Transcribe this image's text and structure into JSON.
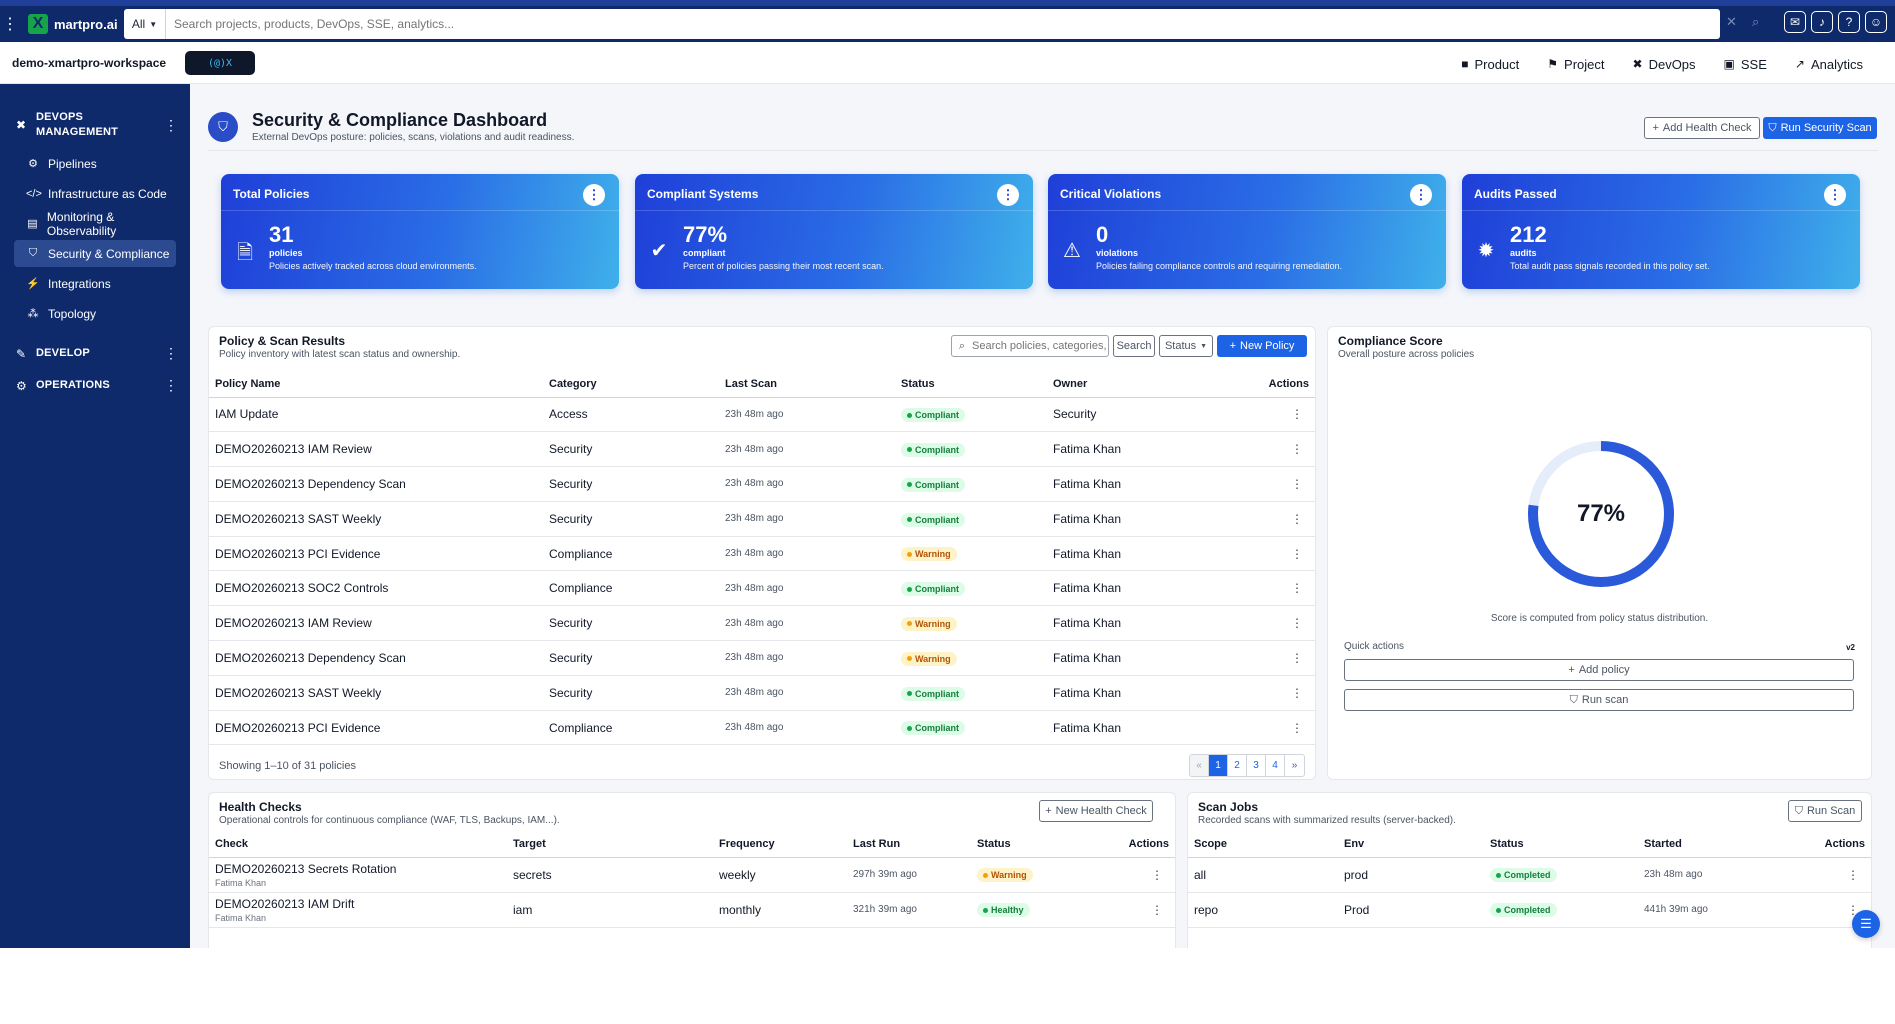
{
  "topbar": {
    "brand": "martpro.ai",
    "search_scope": "All",
    "search_placeholder": "Search projects, products, DevOps, SSE, analytics..."
  },
  "workspace": {
    "name": "demo-xmartpro-workspace",
    "logo_text": "(@)X",
    "nav": [
      {
        "label": "Product",
        "icon": "box-icon"
      },
      {
        "label": "Project",
        "icon": "project-icon"
      },
      {
        "label": "DevOps",
        "icon": "devops-icon"
      },
      {
        "label": "SSE",
        "icon": "sse-icon"
      },
      {
        "label": "Analytics",
        "icon": "analytics-icon"
      }
    ]
  },
  "sidebar": {
    "devops_group": "DEVOPS MANAGEMENT",
    "items": [
      {
        "label": "Pipelines",
        "icon": "pipeline-icon"
      },
      {
        "label": "Infrastructure as Code",
        "icon": "code-icon"
      },
      {
        "label": "Monitoring & Observability",
        "icon": "chart-icon"
      },
      {
        "label": "Security & Compliance",
        "icon": "shield-icon"
      },
      {
        "label": "Integrations",
        "icon": "plug-icon"
      },
      {
        "label": "Topology",
        "icon": "topology-icon"
      }
    ],
    "develop_group": "DEVELOP",
    "operations_group": "OPERATIONS"
  },
  "page": {
    "title": "Security & Compliance Dashboard",
    "subtitle": "External DevOps posture: policies, scans, violations and audit readiness.",
    "add_health_check": "Add Health Check",
    "run_security_scan": "Run Security Scan"
  },
  "kpis": [
    {
      "title": "Total Policies",
      "value": "31",
      "unit": "policies",
      "desc": "Policies actively tracked across cloud environments.",
      "icon": "document-shield-icon"
    },
    {
      "title": "Compliant Systems",
      "value": "77%",
      "unit": "compliant",
      "desc": "Percent of policies passing their most recent scan.",
      "icon": "check-circle-icon"
    },
    {
      "title": "Critical Violations",
      "value": "0",
      "unit": "violations",
      "desc": "Policies failing compliance controls and requiring remediation.",
      "icon": "warning-icon"
    },
    {
      "title": "Audits Passed",
      "value": "212",
      "unit": "audits",
      "desc": "Total audit pass signals recorded in this policy set.",
      "icon": "badge-icon"
    }
  ],
  "policies": {
    "title": "Policy & Scan Results",
    "subtitle": "Policy inventory with latest scan status and ownership.",
    "search_placeholder": "Search policies, categories, ...",
    "search_button": "Search",
    "status_filter": "Status",
    "new_policy": "New Policy",
    "columns": [
      "Policy Name",
      "Category",
      "Last Scan",
      "Status",
      "Owner",
      "Actions"
    ],
    "rows": [
      {
        "name": "IAM Update",
        "category": "Access",
        "last_scan": "23h 48m ago",
        "status": "Compliant",
        "owner": "Security"
      },
      {
        "name": "DEMO20260213 IAM Review",
        "category": "Security",
        "last_scan": "23h 48m ago",
        "status": "Compliant",
        "owner": "Fatima Khan"
      },
      {
        "name": "DEMO20260213 Dependency Scan",
        "category": "Security",
        "last_scan": "23h 48m ago",
        "status": "Compliant",
        "owner": "Fatima Khan"
      },
      {
        "name": "DEMO20260213 SAST Weekly",
        "category": "Security",
        "last_scan": "23h 48m ago",
        "status": "Compliant",
        "owner": "Fatima Khan"
      },
      {
        "name": "DEMO20260213 PCI Evidence",
        "category": "Compliance",
        "last_scan": "23h 48m ago",
        "status": "Warning",
        "owner": "Fatima Khan"
      },
      {
        "name": "DEMO20260213 SOC2 Controls",
        "category": "Compliance",
        "last_scan": "23h 48m ago",
        "status": "Compliant",
        "owner": "Fatima Khan"
      },
      {
        "name": "DEMO20260213 IAM Review",
        "category": "Security",
        "last_scan": "23h 48m ago",
        "status": "Warning",
        "owner": "Fatima Khan"
      },
      {
        "name": "DEMO20260213 Dependency Scan",
        "category": "Security",
        "last_scan": "23h 48m ago",
        "status": "Warning",
        "owner": "Fatima Khan"
      },
      {
        "name": "DEMO20260213 SAST Weekly",
        "category": "Security",
        "last_scan": "23h 48m ago",
        "status": "Compliant",
        "owner": "Fatima Khan"
      },
      {
        "name": "DEMO20260213 PCI Evidence",
        "category": "Compliance",
        "last_scan": "23h 48m ago",
        "status": "Compliant",
        "owner": "Fatima Khan"
      }
    ],
    "footer": "Showing 1–10 of 31 policies",
    "pages": [
      "«",
      "1",
      "2",
      "3",
      "4",
      "»"
    ],
    "current_page": "1"
  },
  "score": {
    "title": "Compliance Score",
    "subtitle": "Overall posture across policies",
    "value": "77%",
    "fraction": 0.77,
    "note": "Score is computed from policy status distribution.",
    "quick_actions": "Quick actions",
    "version": "v2",
    "add_policy": "Add policy",
    "run_scan": "Run scan",
    "color": "#2a59d9",
    "track_color": "#e5edfb"
  },
  "health": {
    "title": "Health Checks",
    "subtitle": "Operational controls for continuous compliance (WAF, TLS, Backups, IAM...).",
    "new_button": "New Health Check",
    "columns": [
      "Check",
      "Target",
      "Frequency",
      "Last Run",
      "Status",
      "Actions"
    ],
    "rows": [
      {
        "check": "DEMO20260213 Secrets Rotation",
        "owner": "Fatima Khan",
        "target": "secrets",
        "frequency": "weekly",
        "last_run": "297h 39m ago",
        "status": "Warning"
      },
      {
        "check": "DEMO20260213 IAM Drift",
        "owner": "Fatima Khan",
        "target": "iam",
        "frequency": "monthly",
        "last_run": "321h 39m ago",
        "status": "Healthy"
      }
    ]
  },
  "scans": {
    "title": "Scan Jobs",
    "subtitle": "Recorded scans with summarized results (server-backed).",
    "run_button": "Run Scan",
    "columns": [
      "Scope",
      "Env",
      "Status",
      "Started",
      "Actions"
    ],
    "rows": [
      {
        "scope": "all",
        "env": "prod",
        "status": "Completed",
        "started": "23h 48m ago"
      },
      {
        "scope": "repo",
        "env": "Prod",
        "status": "Completed",
        "started": "441h 39m ago"
      }
    ]
  }
}
